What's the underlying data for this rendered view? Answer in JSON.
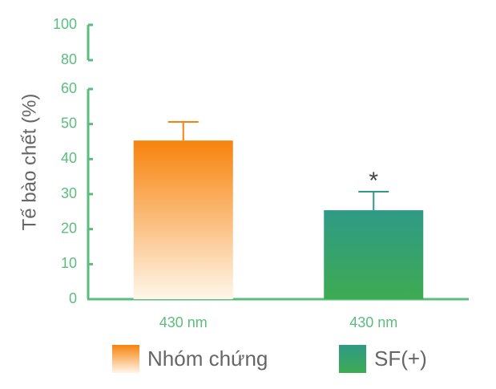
{
  "chart_data": {
    "type": "bar",
    "y_label": "Tế bào chết (%)",
    "categories": [
      "430 nm",
      "430 nm"
    ],
    "series": [
      {
        "name": "Nhóm chứng",
        "color": "#f7830c",
        "gradient_to": "#fff6ea",
        "values": [
          45.3,
          null
        ],
        "errors": [
          5.3,
          null
        ]
      },
      {
        "name": "SF(+)",
        "color": "#2f9a86",
        "gradient_to": "#3eab52",
        "values": [
          null,
          25.4
        ],
        "errors": [
          null,
          5.3
        ]
      }
    ],
    "annotations": [
      {
        "text": "*",
        "category": 1
      }
    ],
    "ylim": [
      0,
      100
    ],
    "axis_break": [
      60,
      80
    ],
    "yticks": [
      0,
      10,
      20,
      30,
      40,
      50,
      60,
      80,
      100
    ],
    "axis_color": "#5bbd7d"
  }
}
